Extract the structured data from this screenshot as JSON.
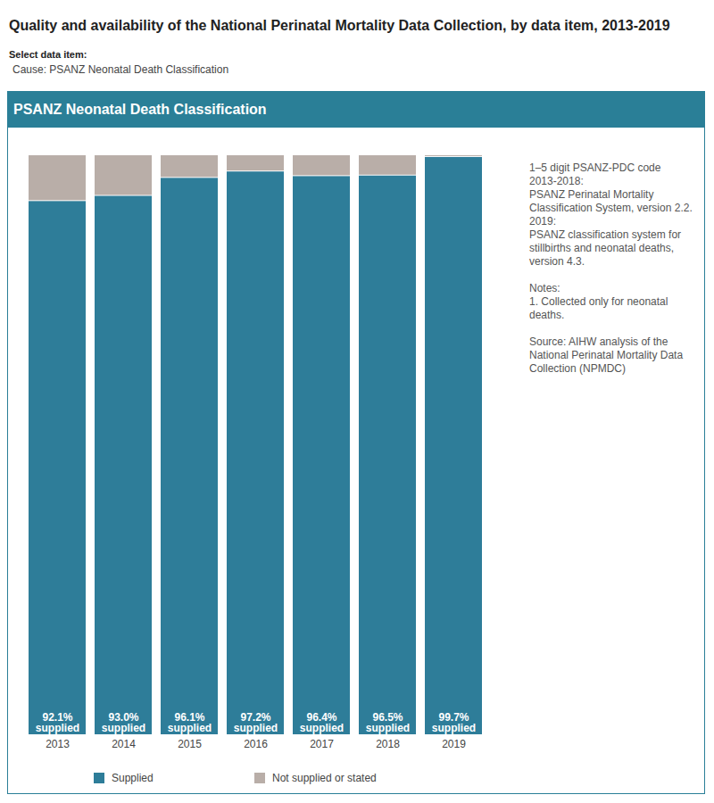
{
  "chart_data": {
    "type": "bar",
    "title": "Quality and availability of the National Perinatal Mortality Data Collection, by data item, 2013-2019",
    "select_label": "Select data item:",
    "selected_item": "Cause: PSANZ Neonatal Death Classification",
    "panel_title": "PSANZ Neonatal Death Classification",
    "notes": [
      "1–5 digit PSANZ-PDC code",
      "2013-2018:",
      "PSANZ Perinatal Mortality Classification System, version 2.2.",
      "2019:",
      "PSANZ classification system for stillbirths and neonatal deaths, version 4.3.",
      "",
      "Notes:",
      "1. Collected only for neonatal deaths.",
      "",
      "Source: AIHW analysis of the National Perinatal Mortality Data Collection (NPMDC)"
    ],
    "categories": [
      "2013",
      "2014",
      "2015",
      "2016",
      "2017",
      "2018",
      "2019"
    ],
    "stacked": true,
    "ylim": [
      0,
      100
    ],
    "tick_labels": "x",
    "data_labels": true,
    "series": [
      {
        "name": "Supplied",
        "color": "#2e7d99",
        "values": [
          92.1,
          93.0,
          96.1,
          97.2,
          96.4,
          96.5,
          99.7
        ],
        "value_labels": [
          "92.1%\nsupplied",
          "93.0%\nsupplied",
          "96.1%\nsupplied",
          "97.2%\nsupplied",
          "96.4%\nsupplied",
          "96.5%\nsupplied",
          "99.7%\nsupplied"
        ]
      },
      {
        "name": "Not supplied or stated",
        "color": "#b9aea8",
        "values": [
          7.9,
          7.0,
          3.9,
          2.8,
          3.6,
          3.5,
          0.3
        ]
      }
    ]
  }
}
